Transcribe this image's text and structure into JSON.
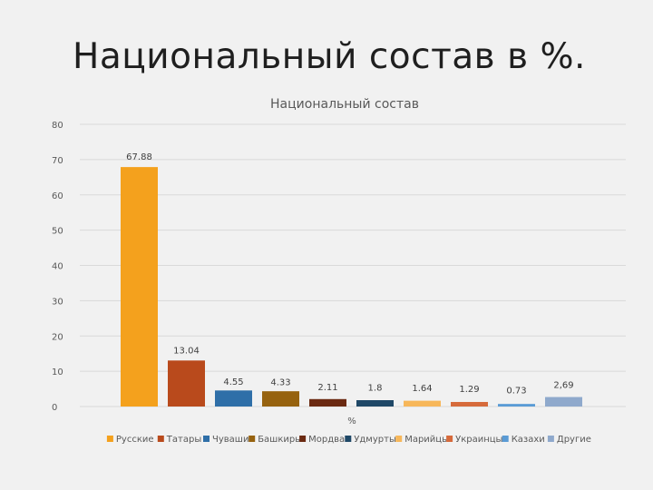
{
  "slide": {
    "title": "Национальный состав в %."
  },
  "chart_data": {
    "type": "bar",
    "title": "Национальный состав",
    "xlabel": "%",
    "ylabel": "",
    "ylim": [
      0,
      80
    ],
    "yticks": [
      0,
      10,
      20,
      30,
      40,
      50,
      60,
      70,
      80
    ],
    "grid": true,
    "legend_position": "bottom",
    "series": [
      {
        "name": "Русские",
        "value": 67.88,
        "label": "67.88",
        "color": "#f4a11d"
      },
      {
        "name": "Татары",
        "value": 13.04,
        "label": "13.04",
        "color": "#b94a1c"
      },
      {
        "name": "Чуваши",
        "value": 4.55,
        "label": "4.55",
        "color": "#2f6fa8"
      },
      {
        "name": "Башкиры",
        "value": 4.33,
        "label": "4.33",
        "color": "#96620f"
      },
      {
        "name": "Мордва",
        "value": 2.11,
        "label": "2.11",
        "color": "#6b2a12"
      },
      {
        "name": "Удмурты",
        "value": 1.8,
        "label": "1.8",
        "color": "#1f4867"
      },
      {
        "name": "Марийцы",
        "value": 1.64,
        "label": "1.64",
        "color": "#f7b75a"
      },
      {
        "name": "Украинцы",
        "value": 1.29,
        "label": "1.29",
        "color": "#d66a3b"
      },
      {
        "name": "Казахи",
        "value": 0.73,
        "label": "0.73",
        "color": "#5a9bd5"
      },
      {
        "name": "Другие",
        "value": 2.69,
        "label": "2,69",
        "color": "#8fa9cc"
      }
    ]
  }
}
